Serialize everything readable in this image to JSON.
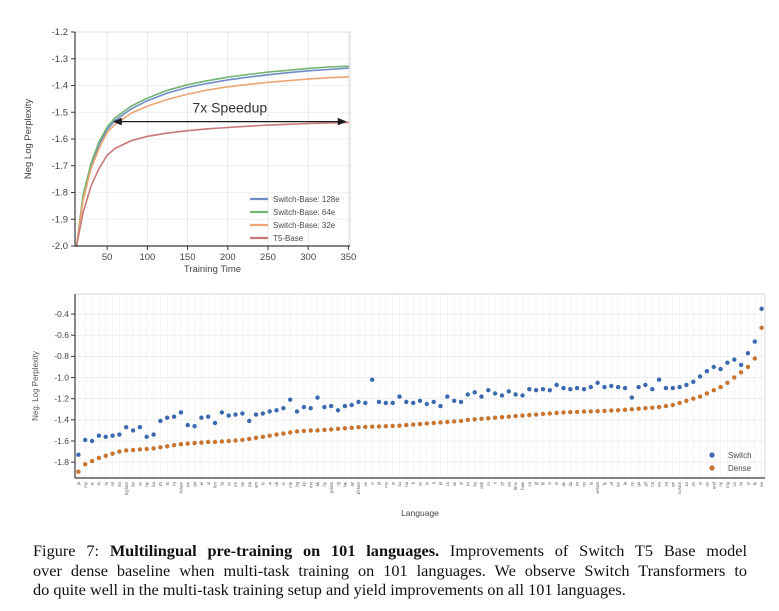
{
  "figure": {
    "caption_line1_prefix": "Figure 7: ",
    "caption_line1_bold": "Multilingual pre-training on 101 languages.",
    "caption_line1_rest": " Improvements of Switch T5 Base model",
    "caption_line2": "over dense baseline when multi-task training on 101 languages. We observe Switch Transformers to",
    "caption_line3": "do quite well in the multi-task training setup and yield improvements on all 101 languages."
  },
  "colors": {
    "switch_base_128e": "#6f8cc6",
    "switch_base_64e": "#72b572",
    "switch_base_32e": "#eda673",
    "t5_base": "#c87878",
    "switch_dot": "#3b69b0",
    "dense_dot": "#c8732e",
    "grid_light": "#ececec",
    "grid": "#e3e3e3",
    "box": "#d8d8d8",
    "axis": "#3a3a3a",
    "tick_text": "#444444",
    "annotation_text": "#333333"
  },
  "chart_data": [
    {
      "type": "line",
      "xlabel": "Training Time",
      "ylabel": "Neg Log Perplexity",
      "xlim": [
        10,
        352
      ],
      "ylim": [
        -2.0,
        -1.2
      ],
      "xticks": [
        50,
        100,
        150,
        200,
        250,
        300,
        350
      ],
      "yticks": [
        -1.2,
        -1.3,
        -1.4,
        -1.5,
        -1.6,
        -1.7,
        -1.8,
        -1.9,
        -2.0
      ],
      "legend_position": "lower right",
      "annotation": {
        "text": "7x Speedup",
        "x_from": 57,
        "x_to": 348,
        "y": -1.535
      },
      "x": [
        12,
        20,
        30,
        40,
        50,
        60,
        80,
        100,
        125,
        150,
        175,
        200,
        225,
        250,
        275,
        300,
        325,
        350
      ],
      "series": [
        {
          "name": "Switch-Base: 128e",
          "color_key": "switch_base_128e",
          "values": [
            -2.0,
            -1.82,
            -1.7,
            -1.62,
            -1.565,
            -1.53,
            -1.487,
            -1.457,
            -1.428,
            -1.407,
            -1.392,
            -1.379,
            -1.369,
            -1.36,
            -1.352,
            -1.345,
            -1.34,
            -1.335
          ]
        },
        {
          "name": "Switch-Base: 64e",
          "color_key": "switch_base_64e",
          "values": [
            -2.0,
            -1.81,
            -1.69,
            -1.61,
            -1.555,
            -1.52,
            -1.477,
            -1.447,
            -1.418,
            -1.397,
            -1.382,
            -1.369,
            -1.359,
            -1.35,
            -1.343,
            -1.336,
            -1.331,
            -1.328
          ]
        },
        {
          "name": "Switch-Base: 32e",
          "color_key": "switch_base_32e",
          "values": [
            -2.0,
            -1.83,
            -1.71,
            -1.635,
            -1.575,
            -1.545,
            -1.503,
            -1.477,
            -1.452,
            -1.432,
            -1.417,
            -1.405,
            -1.396,
            -1.388,
            -1.382,
            -1.376,
            -1.371,
            -1.368
          ]
        },
        {
          "name": "T5-Base",
          "color_key": "t5_base",
          "values": [
            -2.0,
            -1.875,
            -1.775,
            -1.71,
            -1.66,
            -1.635,
            -1.606,
            -1.59,
            -1.578,
            -1.569,
            -1.562,
            -1.557,
            -1.552,
            -1.548,
            -1.545,
            -1.542,
            -1.54,
            -1.538
          ]
        }
      ]
    },
    {
      "type": "scatter",
      "xlabel": "Language",
      "ylabel": "Neg. Log Perplexity",
      "ylim": [
        -1.95,
        -0.21
      ],
      "yticks": [
        -0.4,
        -0.6,
        -0.8,
        -1.0,
        -1.2,
        -1.4,
        -1.6,
        -1.8
      ],
      "legend_position": "lower right",
      "categories": [
        "ja",
        "my",
        "te",
        "th",
        "ta",
        "ml",
        "kn",
        "bg-latn",
        "ko",
        "ar",
        "he",
        "ka",
        "zh",
        "hi",
        "ru",
        "hi-latn",
        "bn",
        "gu",
        "el",
        "si",
        "km",
        "fa",
        "ur",
        "mr",
        "ne",
        "pa",
        "am",
        "lo",
        "vi",
        "uk",
        "sr",
        "mk",
        "bg",
        "ky",
        "mn",
        "kk",
        "hy",
        "ja-latn",
        "tg",
        "be",
        "az",
        "zh-latn",
        "uz",
        "tr",
        "id",
        "ms",
        "jv",
        "su",
        "hu",
        "fi",
        "et",
        "lv",
        "lt",
        "pl",
        "cs",
        "sk",
        "sl",
        "hr",
        "bs",
        "ceb",
        "ro",
        "it",
        "pt",
        "es",
        "hmn",
        "haw",
        "ca",
        "gl",
        "fil",
        "fr",
        "nl",
        "de",
        "da",
        "sv",
        "no",
        "is",
        "el-latn",
        "fy",
        "af",
        "eo",
        "la",
        "cy",
        "ga",
        "gd",
        "mt",
        "eu",
        "sq",
        "sw",
        "ru-latn",
        "zu",
        "xh",
        "st",
        "sn",
        "und",
        "ny",
        "mg",
        "co",
        "ht",
        "yi",
        "lb",
        "en"
      ],
      "series": [
        {
          "name": "Switch",
          "color_key": "switch_dot",
          "values": [
            -1.73,
            -1.59,
            -1.6,
            -1.55,
            -1.56,
            -1.55,
            -1.54,
            -1.47,
            -1.5,
            -1.47,
            -1.56,
            -1.54,
            -1.41,
            -1.38,
            -1.37,
            -1.33,
            -1.45,
            -1.46,
            -1.38,
            -1.37,
            -1.43,
            -1.33,
            -1.36,
            -1.35,
            -1.34,
            -1.41,
            -1.35,
            -1.34,
            -1.32,
            -1.31,
            -1.29,
            -1.21,
            -1.32,
            -1.28,
            -1.29,
            -1.19,
            -1.28,
            -1.27,
            -1.31,
            -1.27,
            -1.26,
            -1.23,
            -1.24,
            -1.02,
            -1.23,
            -1.24,
            -1.24,
            -1.18,
            -1.23,
            -1.24,
            -1.22,
            -1.25,
            -1.23,
            -1.27,
            -1.18,
            -1.22,
            -1.23,
            -1.16,
            -1.14,
            -1.18,
            -1.12,
            -1.15,
            -1.17,
            -1.13,
            -1.16,
            -1.17,
            -1.11,
            -1.12,
            -1.11,
            -1.12,
            -1.07,
            -1.1,
            -1.11,
            -1.1,
            -1.11,
            -1.09,
            -1.05,
            -1.09,
            -1.08,
            -1.09,
            -1.1,
            -1.19,
            -1.09,
            -1.07,
            -1.11,
            -1.02,
            -1.1,
            -1.1,
            -1.09,
            -1.07,
            -1.04,
            -0.99,
            -0.94,
            -0.9,
            -0.92,
            -0.86,
            -0.83,
            -0.88,
            -0.77,
            -0.66,
            -0.35
          ]
        },
        {
          "name": "Dense",
          "color_key": "dense_dot",
          "values": [
            -1.89,
            -1.82,
            -1.79,
            -1.76,
            -1.74,
            -1.72,
            -1.7,
            -1.69,
            -1.685,
            -1.68,
            -1.675,
            -1.67,
            -1.66,
            -1.65,
            -1.64,
            -1.63,
            -1.625,
            -1.62,
            -1.615,
            -1.61,
            -1.61,
            -1.605,
            -1.6,
            -1.595,
            -1.59,
            -1.58,
            -1.57,
            -1.56,
            -1.55,
            -1.54,
            -1.53,
            -1.52,
            -1.51,
            -1.505,
            -1.5,
            -1.5,
            -1.495,
            -1.49,
            -1.485,
            -1.48,
            -1.475,
            -1.47,
            -1.468,
            -1.465,
            -1.462,
            -1.46,
            -1.458,
            -1.455,
            -1.45,
            -1.445,
            -1.44,
            -1.435,
            -1.43,
            -1.425,
            -1.42,
            -1.415,
            -1.41,
            -1.4,
            -1.395,
            -1.39,
            -1.385,
            -1.38,
            -1.375,
            -1.37,
            -1.365,
            -1.36,
            -1.355,
            -1.35,
            -1.345,
            -1.34,
            -1.335,
            -1.33,
            -1.328,
            -1.325,
            -1.322,
            -1.32,
            -1.318,
            -1.315,
            -1.312,
            -1.31,
            -1.305,
            -1.3,
            -1.295,
            -1.29,
            -1.285,
            -1.28,
            -1.27,
            -1.26,
            -1.24,
            -1.22,
            -1.2,
            -1.18,
            -1.15,
            -1.12,
            -1.09,
            -1.05,
            -1.0,
            -0.95,
            -0.9,
            -0.82,
            -0.53
          ]
        }
      ]
    }
  ]
}
